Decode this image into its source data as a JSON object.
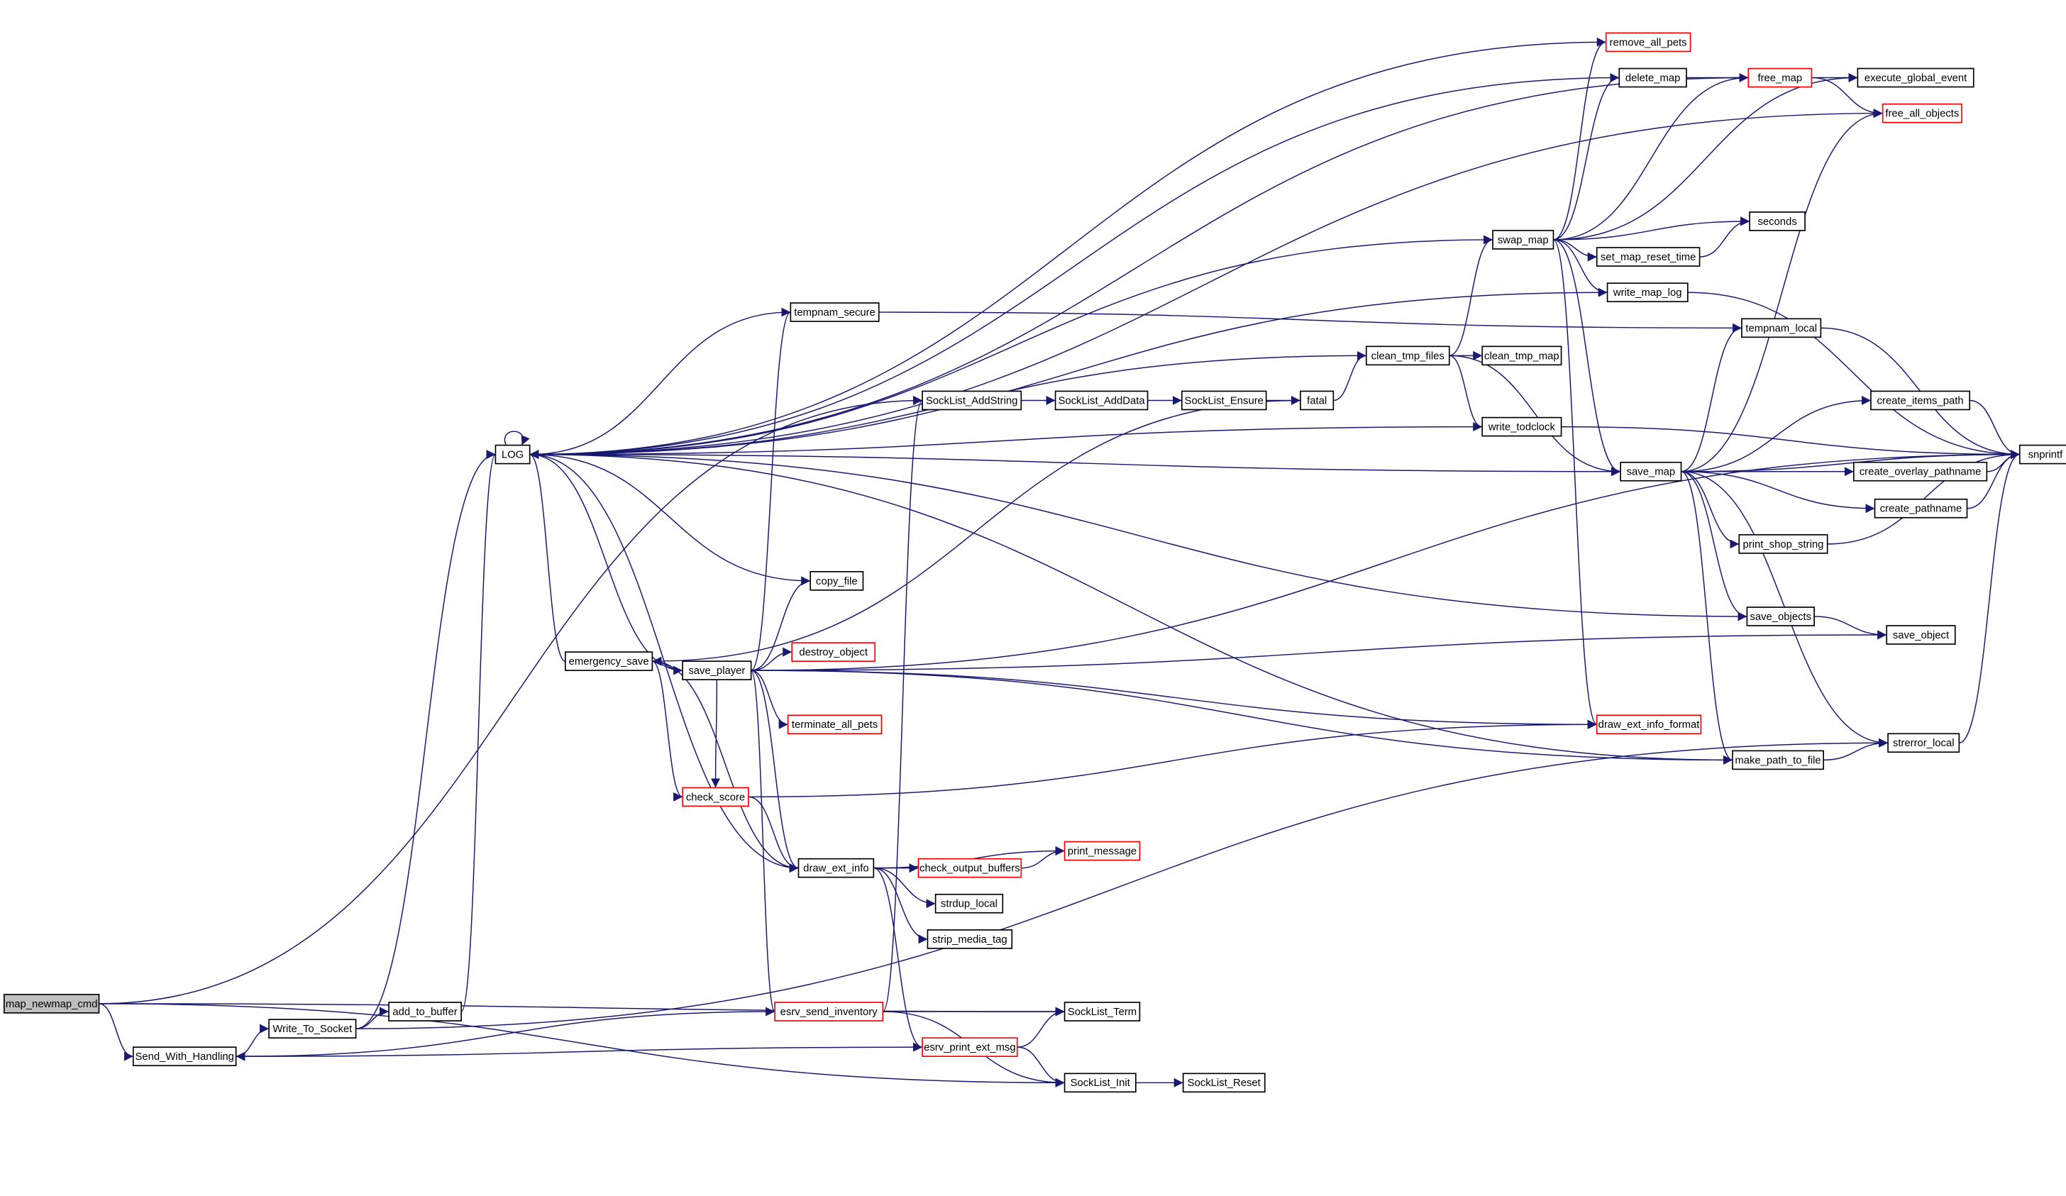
{
  "edge_color": "#191970",
  "highlight_border_color": "#ff0000",
  "root_fill": "#bfbfbf",
  "nodes": [
    {
      "id": "map_newmap_cmd",
      "label": "map_newmap_cmd",
      "style": "root"
    },
    {
      "id": "Send_With_Handling",
      "label": "Send_With_Handling"
    },
    {
      "id": "Write_To_Socket",
      "label": "Write_To_Socket"
    },
    {
      "id": "add_to_buffer",
      "label": "add_to_buffer"
    },
    {
      "id": "LOG",
      "label": "LOG"
    },
    {
      "id": "emergency_save",
      "label": "emergency_save"
    },
    {
      "id": "save_player",
      "label": "save_player"
    },
    {
      "id": "tempnam_secure",
      "label": "tempnam_secure"
    },
    {
      "id": "copy_file",
      "label": "copy_file"
    },
    {
      "id": "destroy_object",
      "label": "destroy_object",
      "style": "red"
    },
    {
      "id": "terminate_all_pets",
      "label": "terminate_all_pets",
      "style": "red"
    },
    {
      "id": "check_score",
      "label": "check_score",
      "style": "red"
    },
    {
      "id": "draw_ext_info",
      "label": "draw_ext_info"
    },
    {
      "id": "check_output_buffers",
      "label": "check_output_buffers",
      "style": "red"
    },
    {
      "id": "print_message",
      "label": "print_message",
      "style": "red"
    },
    {
      "id": "strdup_local",
      "label": "strdup_local"
    },
    {
      "id": "strip_media_tag",
      "label": "strip_media_tag"
    },
    {
      "id": "esrv_send_inventory",
      "label": "esrv_send_inventory",
      "style": "red"
    },
    {
      "id": "esrv_print_ext_msg",
      "label": "esrv_print_ext_msg",
      "style": "red"
    },
    {
      "id": "SockList_AddString",
      "label": "SockList_AddString"
    },
    {
      "id": "SockList_AddData",
      "label": "SockList_AddData"
    },
    {
      "id": "SockList_Ensure",
      "label": "SockList_Ensure"
    },
    {
      "id": "fatal",
      "label": "fatal"
    },
    {
      "id": "SockList_Term",
      "label": "SockList_Term"
    },
    {
      "id": "SockList_Init",
      "label": "SockList_Init"
    },
    {
      "id": "SockList_Reset",
      "label": "SockList_Reset"
    },
    {
      "id": "clean_tmp_files",
      "label": "clean_tmp_files"
    },
    {
      "id": "clean_tmp_map",
      "label": "clean_tmp_map"
    },
    {
      "id": "write_todclock",
      "label": "write_todclock"
    },
    {
      "id": "swap_map",
      "label": "swap_map"
    },
    {
      "id": "remove_all_pets",
      "label": "remove_all_pets",
      "style": "red"
    },
    {
      "id": "delete_map",
      "label": "delete_map"
    },
    {
      "id": "free_map",
      "label": "free_map",
      "style": "red"
    },
    {
      "id": "execute_global_event",
      "label": "execute_global_event"
    },
    {
      "id": "free_all_objects",
      "label": "free_all_objects",
      "style": "red"
    },
    {
      "id": "seconds",
      "label": "seconds"
    },
    {
      "id": "set_map_reset_time",
      "label": "set_map_reset_time"
    },
    {
      "id": "write_map_log",
      "label": "write_map_log"
    },
    {
      "id": "tempnam_local",
      "label": "tempnam_local"
    },
    {
      "id": "save_map",
      "label": "save_map"
    },
    {
      "id": "create_items_path",
      "label": "create_items_path"
    },
    {
      "id": "snprintf",
      "label": "snprintf"
    },
    {
      "id": "create_overlay_pathname",
      "label": "create_overlay_pathname"
    },
    {
      "id": "create_pathname",
      "label": "create_pathname"
    },
    {
      "id": "print_shop_string",
      "label": "print_shop_string"
    },
    {
      "id": "save_objects",
      "label": "save_objects"
    },
    {
      "id": "save_object",
      "label": "save_object"
    },
    {
      "id": "draw_ext_info_format",
      "label": "draw_ext_info_format",
      "style": "red"
    },
    {
      "id": "make_path_to_file",
      "label": "make_path_to_file"
    },
    {
      "id": "strerror_local",
      "label": "strerror_local"
    }
  ],
  "edges": [
    [
      "map_newmap_cmd",
      "Send_With_Handling"
    ],
    [
      "map_newmap_cmd",
      "SockList_AddString"
    ],
    [
      "map_newmap_cmd",
      "SockList_Term"
    ],
    [
      "map_newmap_cmd",
      "SockList_Init"
    ],
    [
      "Send_With_Handling",
      "Write_To_Socket"
    ],
    [
      "Write_To_Socket",
      "add_to_buffer"
    ],
    [
      "Write_To_Socket",
      "LOG"
    ],
    [
      "Write_To_Socket",
      "strerror_local"
    ],
    [
      "add_to_buffer",
      "LOG"
    ],
    [
      "LOG",
      "LOG"
    ],
    [
      "emergency_save",
      "LOG"
    ],
    [
      "emergency_save",
      "save_player"
    ],
    [
      "emergency_save",
      "check_score"
    ],
    [
      "emergency_save",
      "draw_ext_info"
    ],
    [
      "save_player",
      "LOG"
    ],
    [
      "save_player",
      "tempnam_secure"
    ],
    [
      "save_player",
      "copy_file"
    ],
    [
      "save_player",
      "destroy_object"
    ],
    [
      "save_player",
      "terminate_all_pets"
    ],
    [
      "save_player",
      "check_score"
    ],
    [
      "save_player",
      "draw_ext_info"
    ],
    [
      "save_player",
      "esrv_send_inventory"
    ],
    [
      "save_player",
      "save_object"
    ],
    [
      "save_player",
      "snprintf"
    ],
    [
      "save_player",
      "draw_ext_info_format"
    ],
    [
      "save_player",
      "make_path_to_file"
    ],
    [
      "tempnam_secure",
      "LOG"
    ],
    [
      "tempnam_secure",
      "tempnam_local"
    ],
    [
      "copy_file",
      "LOG"
    ],
    [
      "check_score",
      "draw_ext_info"
    ],
    [
      "check_score",
      "draw_ext_info_format"
    ],
    [
      "draw_ext_info",
      "LOG"
    ],
    [
      "draw_ext_info",
      "check_output_buffers"
    ],
    [
      "draw_ext_info",
      "print_message"
    ],
    [
      "draw_ext_info",
      "strdup_local"
    ],
    [
      "draw_ext_info",
      "strip_media_tag"
    ],
    [
      "draw_ext_info",
      "esrv_print_ext_msg"
    ],
    [
      "check_output_buffers",
      "print_message"
    ],
    [
      "esrv_send_inventory",
      "SockList_AddString"
    ],
    [
      "esrv_send_inventory",
      "SockList_Term"
    ],
    [
      "esrv_send_inventory",
      "SockList_Init"
    ],
    [
      "esrv_send_inventory",
      "Send_With_Handling"
    ],
    [
      "esrv_print_ext_msg",
      "SockList_Term"
    ],
    [
      "esrv_print_ext_msg",
      "SockList_Init"
    ],
    [
      "esrv_print_ext_msg",
      "Send_With_Handling"
    ],
    [
      "SockList_AddString",
      "SockList_AddData"
    ],
    [
      "SockList_AddData",
      "SockList_Ensure"
    ],
    [
      "SockList_Ensure",
      "fatal"
    ],
    [
      "fatal",
      "clean_tmp_files"
    ],
    [
      "fatal",
      "emergency_save"
    ],
    [
      "SockList_Init",
      "SockList_Reset"
    ],
    [
      "clean_tmp_files",
      "LOG"
    ],
    [
      "clean_tmp_files",
      "clean_tmp_map"
    ],
    [
      "clean_tmp_files",
      "write_todclock"
    ],
    [
      "clean_tmp_files",
      "swap_map"
    ],
    [
      "clean_tmp_files",
      "save_map"
    ],
    [
      "write_todclock",
      "LOG"
    ],
    [
      "write_todclock",
      "snprintf"
    ],
    [
      "swap_map",
      "LOG"
    ],
    [
      "swap_map",
      "remove_all_pets"
    ],
    [
      "swap_map",
      "delete_map"
    ],
    [
      "swap_map",
      "free_map"
    ],
    [
      "swap_map",
      "execute_global_event"
    ],
    [
      "swap_map",
      "seconds"
    ],
    [
      "swap_map",
      "set_map_reset_time"
    ],
    [
      "swap_map",
      "write_map_log"
    ],
    [
      "swap_map",
      "save_map"
    ],
    [
      "swap_map",
      "draw_ext_info_format"
    ],
    [
      "remove_all_pets",
      "LOG"
    ],
    [
      "delete_map",
      "LOG"
    ],
    [
      "delete_map",
      "free_map"
    ],
    [
      "free_map",
      "LOG"
    ],
    [
      "free_map",
      "execute_global_event"
    ],
    [
      "free_map",
      "free_all_objects"
    ],
    [
      "free_all_objects",
      "LOG"
    ],
    [
      "set_map_reset_time",
      "seconds"
    ],
    [
      "write_map_log",
      "LOG"
    ],
    [
      "write_map_log",
      "snprintf"
    ],
    [
      "tempnam_local",
      "snprintf"
    ],
    [
      "save_map",
      "LOG"
    ],
    [
      "save_map",
      "tempnam_local"
    ],
    [
      "save_map",
      "free_all_objects"
    ],
    [
      "save_map",
      "create_items_path"
    ],
    [
      "save_map",
      "snprintf"
    ],
    [
      "save_map",
      "create_overlay_pathname"
    ],
    [
      "save_map",
      "create_pathname"
    ],
    [
      "save_map",
      "print_shop_string"
    ],
    [
      "save_map",
      "save_objects"
    ],
    [
      "save_map",
      "strerror_local"
    ],
    [
      "save_map",
      "make_path_to_file"
    ],
    [
      "create_items_path",
      "snprintf"
    ],
    [
      "create_overlay_pathname",
      "snprintf"
    ],
    [
      "create_pathname",
      "snprintf"
    ],
    [
      "print_shop_string",
      "snprintf"
    ],
    [
      "save_objects",
      "LOG"
    ],
    [
      "save_objects",
      "save_object"
    ],
    [
      "make_path_to_file",
      "strerror_local"
    ],
    [
      "make_path_to_file",
      "LOG"
    ],
    [
      "strerror_local",
      "snprintf"
    ]
  ]
}
